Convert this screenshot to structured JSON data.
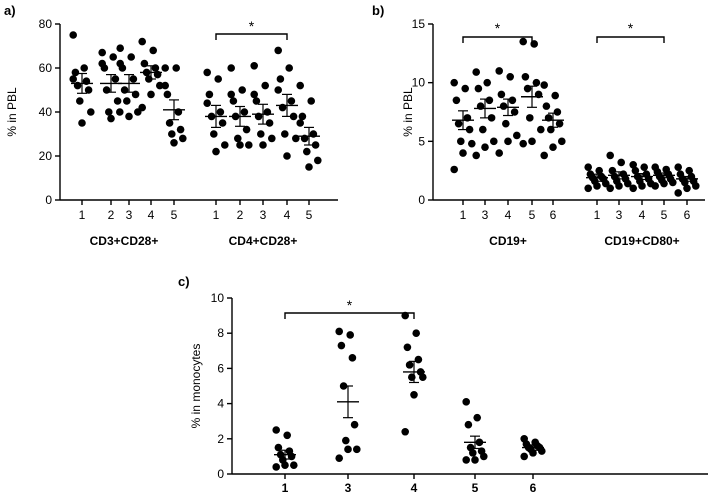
{
  "chart_data": [
    {
      "panel": "a)",
      "type": "scatter",
      "ylabel": "% in PBL",
      "ylim": [
        0,
        80
      ],
      "yticks": [
        0,
        20,
        40,
        60,
        80
      ],
      "groups": [
        {
          "label": "CD3+CD28+",
          "categories": [
            "1",
            "2",
            "3",
            "4",
            "5"
          ],
          "means": [
            53,
            53,
            53,
            58,
            41
          ],
          "sems": [
            4.5,
            4,
            4,
            3,
            4.5
          ],
          "points": [
            [
              75,
              60,
              58,
              54,
              52,
              50,
              45,
              40,
              35,
              55
            ],
            [
              67,
              65,
              60,
              55,
              50,
              45,
              40,
              40,
              37,
              62
            ],
            [
              69,
              65,
              60,
              55,
              50,
              48,
              45,
              40,
              38,
              62
            ],
            [
              72,
              68,
              62,
              60,
              58,
              57,
              55,
              52,
              48,
              42
            ],
            [
              60,
              60,
              48,
              40,
              35,
              32,
              30,
              28,
              26,
              52
            ]
          ],
          "bracket": null
        },
        {
          "label": "CD4+CD28+",
          "categories": [
            "1",
            "2",
            "3",
            "4",
            "5"
          ],
          "means": [
            38,
            38,
            39,
            43,
            29
          ],
          "sems": [
            5,
            4.5,
            4.5,
            5,
            4
          ],
          "points": [
            [
              58,
              55,
              48,
              40,
              38,
              35,
              30,
              25,
              22,
              44
            ],
            [
              60,
              50,
              45,
              40,
              38,
              32,
              28,
              25,
              25,
              48
            ],
            [
              61,
              52,
              45,
              40,
              38,
              35,
              30,
              28,
              25,
              48
            ],
            [
              68,
              60,
              55,
              45,
              42,
              38,
              30,
              28,
              20,
              50
            ],
            [
              52,
              45,
              38,
              30,
              28,
              25,
              22,
              18,
              15,
              35
            ]
          ],
          "bracket": {
            "from": "1",
            "to": "4",
            "label": "*"
          }
        }
      ]
    },
    {
      "panel": "b)",
      "type": "scatter",
      "ylabel": "% in PBL",
      "ylim": [
        0,
        15
      ],
      "yticks": [
        0,
        5,
        10,
        15
      ],
      "groups": [
        {
          "label": "CD19+",
          "categories": [
            "1",
            "3",
            "4",
            "5",
            "6"
          ],
          "means": [
            6.8,
            7.8,
            7.9,
            8.8,
            6.8
          ],
          "sems": [
            0.8,
            0.8,
            0.7,
            0.9,
            0.6
          ],
          "points": [
            [
              10,
              9.5,
              8.5,
              7,
              6.5,
              6,
              5,
              4.8,
              4,
              2.6
            ],
            [
              10.9,
              10,
              9.5,
              8.5,
              8,
              7,
              6,
              5,
              4.5,
              3.8
            ],
            [
              11,
              10.5,
              9,
              8.5,
              8,
              7.5,
              6.5,
              5.5,
              5,
              4
            ],
            [
              13.5,
              13.3,
              10.5,
              10,
              9.5,
              9,
              7,
              6,
              5,
              4.8
            ],
            [
              9.8,
              8.9,
              8,
              7.5,
              7,
              6.5,
              6,
              5,
              4.5,
              3.8
            ]
          ],
          "bracket": {
            "from": "1",
            "to": "5",
            "label": "*"
          }
        },
        {
          "label": "CD19+CD80+",
          "categories": [
            "1",
            "3",
            "4",
            "5",
            "6"
          ],
          "means": [
            1.9,
            2.1,
            2.0,
            2.1,
            1.8
          ],
          "sems": [
            0.3,
            0.3,
            0.25,
            0.2,
            0.2
          ],
          "points": [
            [
              2.8,
              2.5,
              2.2,
              2,
              1.9,
              1.8,
              1.6,
              1.4,
              1.2,
              1
            ],
            [
              3.8,
              3.2,
              2.5,
              2.2,
              2,
              1.8,
              1.6,
              1.4,
              1.2,
              1
            ],
            [
              3,
              2.8,
              2.5,
              2.2,
              2,
              1.8,
              1.6,
              1.4,
              1.2,
              1
            ],
            [
              2.8,
              2.6,
              2.4,
              2.2,
              2,
              1.8,
              1.7,
              1.5,
              1.4,
              1.2
            ],
            [
              2.8,
              2.5,
              2.2,
              2,
              1.8,
              1.6,
              1.5,
              1.2,
              1,
              0.6
            ]
          ],
          "bracket": {
            "from": "1",
            "to": "5",
            "label": "*"
          }
        }
      ]
    },
    {
      "panel": "c)",
      "type": "scatter",
      "ylabel": "% in monocytes",
      "ylim": [
        0,
        10
      ],
      "yticks": [
        0,
        2,
        4,
        6,
        8,
        10
      ],
      "groups": [
        {
          "label": "",
          "categories": [
            "1",
            "3",
            "4",
            "5",
            "6"
          ],
          "means": [
            1.1,
            4.1,
            5.8,
            1.8,
            1.5
          ],
          "sems": [
            0.25,
            0.9,
            0.6,
            0.35,
            0.15
          ],
          "points": [
            [
              2.5,
              2.2,
              1.5,
              1.3,
              1.1,
              1,
              0.8,
              0.5,
              0.5,
              0.4
            ],
            [
              8.1,
              7.9,
              7.3,
              6.6,
              5,
              2.8,
              1.9,
              1.4,
              1.4,
              0.9
            ],
            [
              9,
              8,
              7.2,
              6.5,
              6.2,
              5.8,
              5.5,
              5.5,
              4.5,
              2.4
            ],
            [
              4.1,
              3.2,
              2.8,
              1.8,
              1.5,
              1.3,
              1.2,
              1,
              0.8,
              0.8
            ],
            [
              2,
              1.8,
              1.7,
              1.6,
              1.5,
              1.5,
              1.4,
              1.3,
              1.2,
              1
            ]
          ],
          "bracket": {
            "from": "1",
            "to": "4",
            "label": "*"
          }
        }
      ]
    }
  ]
}
